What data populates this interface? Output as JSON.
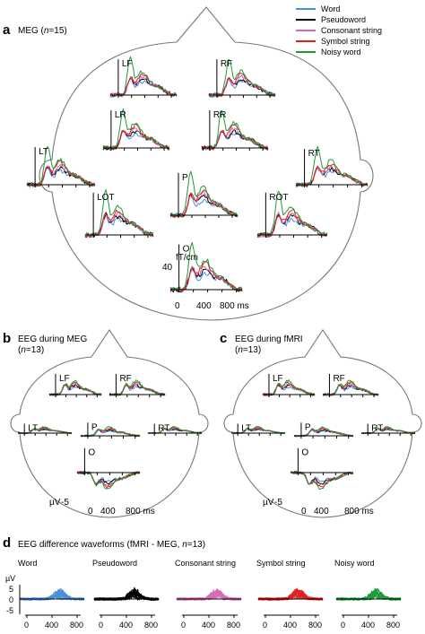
{
  "legend": {
    "items": [
      {
        "label": "Word",
        "color": "#4a90d9"
      },
      {
        "label": "Pseudoword",
        "color": "#000000"
      },
      {
        "label": "Consonant string",
        "color": "#d66bb5"
      },
      {
        "label": "Symbol string",
        "color": "#e02020"
      },
      {
        "label": "Noisy word",
        "color": "#1e9a3a"
      }
    ]
  },
  "panel_a": {
    "letter": "a",
    "title_prefix": "MEG (",
    "title_n": "n",
    "title_suffix": "=15)",
    "sensors": [
      "LF",
      "RF",
      "LR",
      "RR",
      "LT",
      "RT",
      "P",
      "LOT",
      "ROT",
      "O"
    ],
    "scale_unit": "fT/cm",
    "scale_value": "40",
    "time_ticks": [
      "0",
      "400",
      "800 ms"
    ]
  },
  "panel_b": {
    "letter": "b",
    "title_line1": "EEG during MEG",
    "title_line2_prefix": "(",
    "title_n": "n",
    "title_line2_suffix": "=13)",
    "sensors": [
      "LF",
      "RF",
      "LT",
      "P",
      "RT",
      "O"
    ],
    "scale_unit": "µV",
    "scale_value": "-5",
    "time_ticks": [
      "0",
      "400",
      "800 ms"
    ]
  },
  "panel_c": {
    "letter": "c",
    "title_line1": "EEG during fMRI",
    "title_line2_prefix": "(",
    "title_n": "n",
    "title_line2_suffix": "=13)",
    "sensors": [
      "LF",
      "RF",
      "LT",
      "P",
      "RT",
      "O"
    ],
    "scale_unit": "µV",
    "scale_value": "-5",
    "time_ticks": [
      "0",
      "400",
      "800 ms"
    ]
  },
  "panel_d": {
    "letter": "d",
    "title_prefix": "EEG difference waveforms (fMRI - MEG, ",
    "title_n": "n",
    "title_suffix": "=13)",
    "unit": "µV",
    "y_ticks": [
      "5",
      "0",
      "-5"
    ],
    "x_ticks": [
      "0",
      "400",
      "800"
    ],
    "conditions": [
      {
        "label": "Word",
        "color": "#4a90d9"
      },
      {
        "label": "Pseudoword",
        "color": "#000000"
      },
      {
        "label": "Consonant string",
        "color": "#d66bb5"
      },
      {
        "label": "Symbol string",
        "color": "#e02020"
      },
      {
        "label": "Noisy word",
        "color": "#1e9a3a"
      }
    ]
  }
}
